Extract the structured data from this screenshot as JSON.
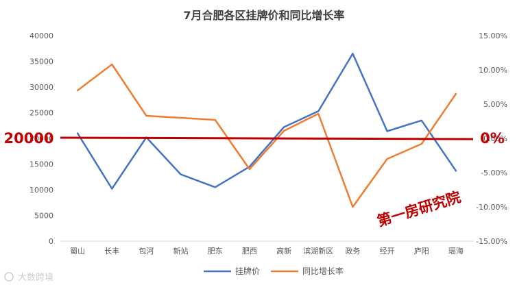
{
  "chart_data": {
    "type": "line",
    "title": "7月合肥各区挂牌价和同比增长率",
    "categories": [
      "蜀山",
      "长丰",
      "包河",
      "新站",
      "肥东",
      "肥西",
      "高新",
      "滨湖新区",
      "政务",
      "经开",
      "庐阳",
      "瑶海"
    ],
    "series": [
      {
        "name": "挂牌价",
        "axis": "left",
        "color": "#4472c4",
        "values": [
          21000,
          10200,
          20200,
          13000,
          10500,
          14500,
          22200,
          25300,
          36500,
          21400,
          23500,
          13700
        ]
      },
      {
        "name": "同比增长率",
        "axis": "right",
        "color": "#ed7d31",
        "values": [
          7.0,
          10.8,
          3.3,
          3.0,
          2.7,
          -4.5,
          1.1,
          3.6,
          -10.0,
          -3.0,
          -0.8,
          6.5
        ]
      }
    ],
    "y_left": {
      "min": 0,
      "max": 40000,
      "step": 5000,
      "ticks": [
        "0",
        "5000",
        "10000",
        "15000",
        "20000",
        "25000",
        "30000",
        "35000",
        "40000"
      ]
    },
    "y_right": {
      "min": -15,
      "max": 15,
      "step": 5,
      "ticks": [
        "-15.00%",
        "-10.00%",
        "-5.00%",
        "0.00%",
        "5.00%",
        "10.00%",
        "15.00%"
      ]
    },
    "reference_line": {
      "value": 20000,
      "color": "#c00000",
      "left_label": "20000",
      "right_label": "0%"
    },
    "grid": false,
    "legend_position": "bottom"
  },
  "annotation": {
    "stamp_text": "第一房研究院",
    "color": "#c00000"
  },
  "watermark": {
    "text": "大数跨境"
  }
}
